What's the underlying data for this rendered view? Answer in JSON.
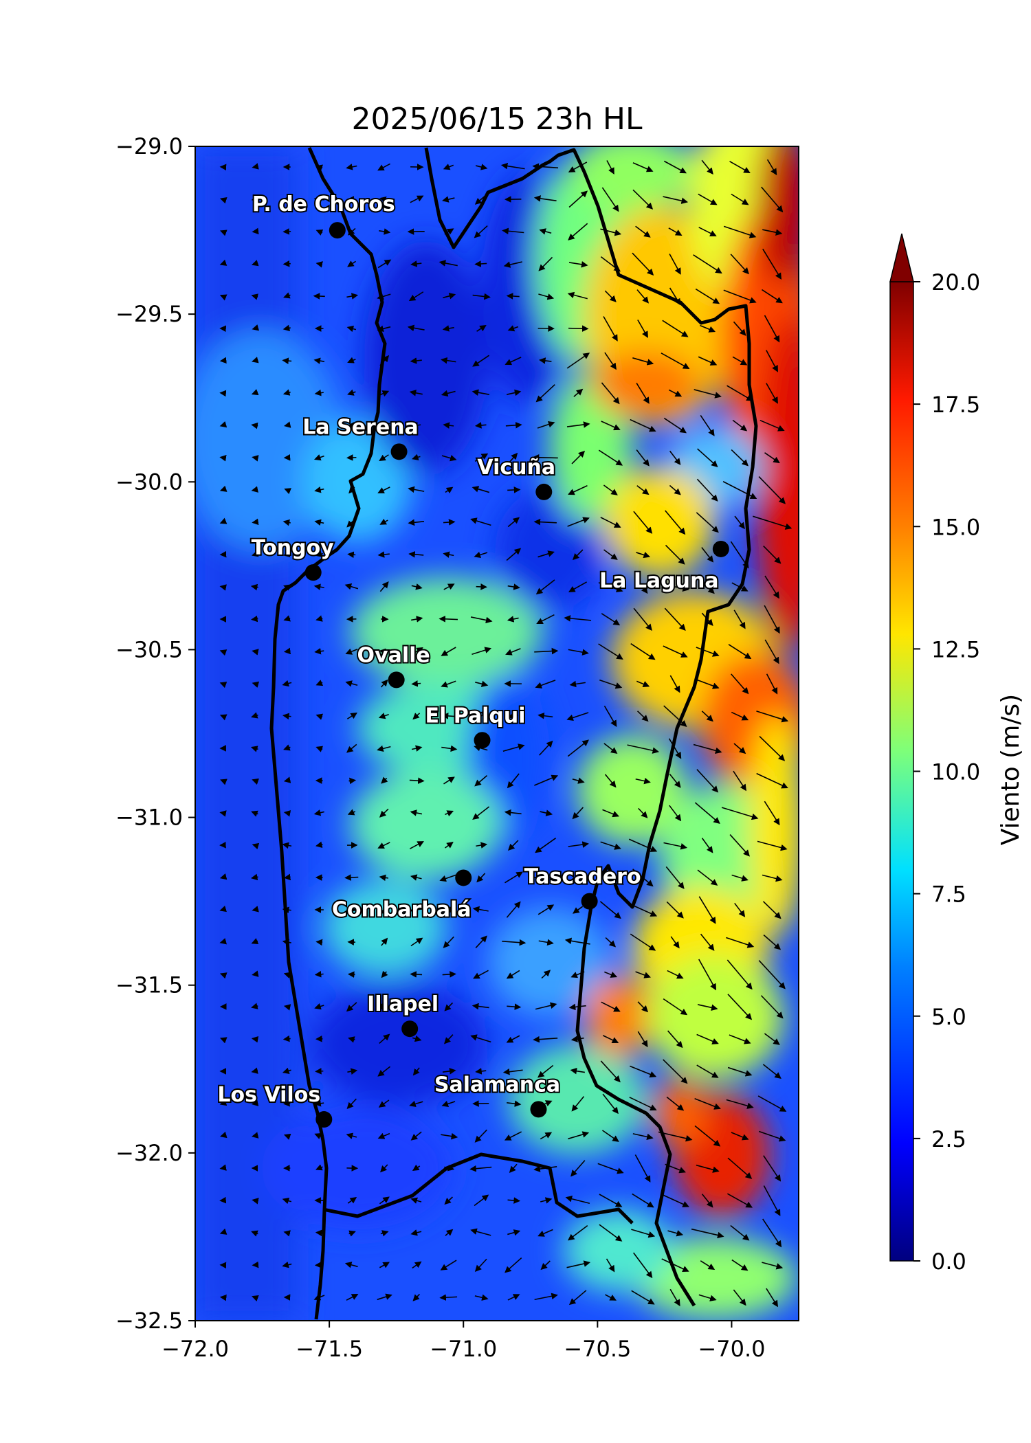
{
  "title": "2025/06/15 23h HL",
  "colorbar": {
    "label": "Viento (m/s)",
    "min": 0,
    "max": 20,
    "extend": "max",
    "ticks": [
      "0.0",
      "2.5",
      "5.0",
      "7.5",
      "10.0",
      "12.5",
      "15.0",
      "17.5",
      "20.0"
    ],
    "colormap": [
      "#00007f",
      "#0000ff",
      "#0080ff",
      "#00e0ff",
      "#7dff7a",
      "#ffe600",
      "#ff8000",
      "#ff1a00",
      "#800000"
    ]
  },
  "axes": {
    "xlim": [
      -72.0,
      -69.75
    ],
    "ylim": [
      -32.5,
      -29.0
    ],
    "xticks": [
      "−72.0",
      "−71.5",
      "−71.0",
      "−70.5",
      "−70.0"
    ],
    "xtick_values": [
      -72.0,
      -71.5,
      -71.0,
      -70.5,
      -70.0
    ],
    "yticks": [
      "−29.0",
      "−29.5",
      "−30.0",
      "−30.5",
      "−31.0",
      "−31.5",
      "−32.0",
      "−32.5"
    ],
    "ytick_values": [
      -29.0,
      -29.5,
      -30.0,
      -30.5,
      -31.0,
      -31.5,
      -32.0,
      -32.5
    ]
  },
  "cities": [
    {
      "name": "P. de Choros",
      "lon": -71.47,
      "lat": -29.25
    },
    {
      "name": "La Serena",
      "lon": -71.24,
      "lat": -29.91
    },
    {
      "name": "Vicuña",
      "lon": -70.7,
      "lat": -30.03
    },
    {
      "name": "Tongoy",
      "lon": -71.56,
      "lat": -30.27
    },
    {
      "name": "La Laguna",
      "lon": -70.04,
      "lat": -30.2
    },
    {
      "name": "Ovalle",
      "lon": -71.25,
      "lat": -30.59
    },
    {
      "name": "El Palqui",
      "lon": -70.93,
      "lat": -30.77
    },
    {
      "name": "Combarbalá",
      "lon": -71.0,
      "lat": -31.18
    },
    {
      "name": "Tascadero",
      "lon": -70.53,
      "lat": -31.25
    },
    {
      "name": "Illapel",
      "lon": -71.2,
      "lat": -31.63
    },
    {
      "name": "Los Vilos",
      "lon": -71.52,
      "lat": -31.9
    },
    {
      "name": "Salamanca",
      "lon": -70.72,
      "lat": -31.87
    }
  ]
}
